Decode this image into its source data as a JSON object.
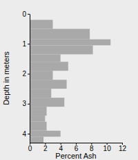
{
  "chart_data": {
    "type": "histogram",
    "orientation": "horizontal",
    "x_label": "Percent Ash",
    "y_label": "Depth in meters",
    "bins": [
      0.2,
      0.5,
      0.85,
      1.05,
      1.35,
      1.6,
      1.9,
      2.2,
      2.5,
      2.8,
      3.1,
      3.4,
      3.6,
      3.9,
      4.1,
      4.3
    ],
    "values": [
      3.0,
      7.8,
      10.5,
      8.2,
      4.0,
      5.0,
      3.0,
      4.8,
      2.8,
      4.5,
      2.2,
      2.0,
      2.2,
      4.0,
      1.8
    ],
    "color": "#a9a9a9",
    "xlim": [
      0,
      12
    ],
    "xticks": [
      0,
      2,
      4,
      6,
      8,
      10,
      12
    ],
    "ylim": [
      0,
      4.3
    ],
    "yticks": [
      0,
      1,
      2,
      3,
      4
    ]
  }
}
